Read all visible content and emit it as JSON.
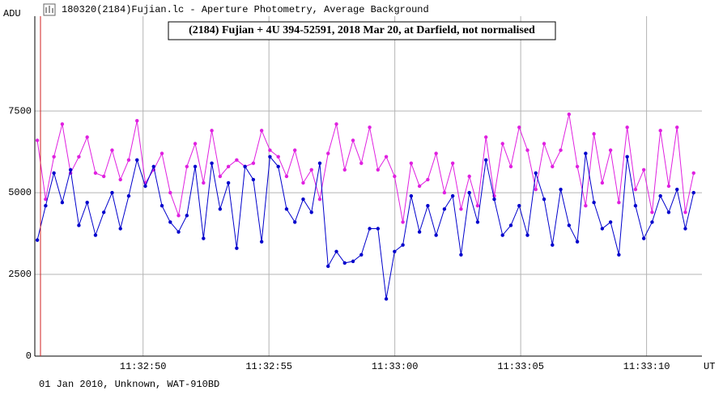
{
  "window_title": "180320(2184)Fujian.lc - Aperture Photometry, Average Background",
  "footer": "01 Jan 2010, Unknown, WAT-910BD",
  "chart_data": {
    "type": "line",
    "title": "(2184) Fujian + 4U 394-52591, 2018 Mar 20, at Darfield, not normalised",
    "ylabel": "ADU",
    "xlabel": "UT",
    "x": [
      45.8,
      46.13,
      46.46,
      46.79,
      47.12,
      47.45,
      47.78,
      48.11,
      48.44,
      48.77,
      49.1,
      49.43,
      49.76,
      50.09,
      50.42,
      50.75,
      51.08,
      51.41,
      51.74,
      52.07,
      52.4,
      52.73,
      53.06,
      53.39,
      53.72,
      54.05,
      54.38,
      54.71,
      55.04,
      55.37,
      55.7,
      56.03,
      56.36,
      56.69,
      57.02,
      57.35,
      57.68,
      58.01,
      58.34,
      58.67,
      59,
      59.33,
      59.66,
      59.99,
      60.32,
      60.65,
      60.98,
      61.31,
      61.64,
      61.97,
      62.3,
      62.63,
      62.96,
      63.29,
      63.62,
      63.95,
      64.28,
      64.61,
      64.94,
      65.27,
      65.6,
      65.93,
      66.26,
      66.59,
      66.92,
      67.25,
      67.58,
      67.91,
      68.24,
      68.57,
      68.9,
      69.23,
      69.56,
      69.89,
      70.22,
      70.55,
      70.88,
      71.21,
      71.54,
      71.87
    ],
    "series": [
      {
        "color": "#e020e0",
        "values": [
          6600,
          4800,
          6100,
          7100,
          5600,
          6100,
          6700,
          5600,
          5500,
          6300,
          5400,
          6000,
          7200,
          5300,
          5700,
          6200,
          5000,
          4300,
          5800,
          6500,
          5300,
          6900,
          5500,
          5800,
          6000,
          5800,
          5900,
          6900,
          6300,
          6100,
          5500,
          6300,
          5300,
          5700,
          4800,
          6200,
          7100,
          5700,
          6600,
          5900,
          7000,
          5700,
          6100,
          5500,
          4100,
          5900,
          5200,
          5400,
          6200,
          5000,
          5900,
          4500,
          5500,
          4600,
          6700,
          4900,
          6500,
          5800,
          7000,
          6300,
          5100,
          6500,
          5800,
          6300,
          7400,
          5800,
          4600,
          6800,
          5300,
          6300,
          4700,
          7000,
          5100,
          5700,
          4400,
          6900,
          5200,
          7000,
          4400,
          5600
        ]
      },
      {
        "color": "#0000cc",
        "values": [
          3550,
          4600,
          5600,
          4700,
          5700,
          4000,
          4700,
          3700,
          4400,
          5000,
          3900,
          4900,
          6000,
          5200,
          5800,
          4600,
          4100,
          3800,
          4300,
          5800,
          3600,
          5900,
          4500,
          5300,
          3300,
          5800,
          5400,
          3500,
          6100,
          5800,
          4500,
          4100,
          4800,
          4400,
          5900,
          2750,
          3200,
          2850,
          2900,
          3100,
          3900,
          3900,
          1750,
          3200,
          3400,
          4900,
          3800,
          4600,
          3700,
          4500,
          4900,
          3100,
          5000,
          4100,
          6000,
          4800,
          3700,
          4000,
          4600,
          3700,
          5600,
          4800,
          3400,
          5100,
          4000,
          3500,
          6200,
          4700,
          3900,
          4100,
          3100,
          6100,
          4600,
          3600,
          4100,
          4900,
          4400,
          5100,
          3900,
          5000
        ]
      }
    ],
    "xlim": [
      45.7,
      72.2
    ],
    "xticks": [
      {
        "value": 50,
        "label": "11:32:50"
      },
      {
        "value": 55,
        "label": "11:32:55"
      },
      {
        "value": 60,
        "label": "11:33:00"
      },
      {
        "value": 65,
        "label": "11:33:05"
      },
      {
        "value": 70,
        "label": "11:33:10"
      }
    ],
    "ylim": [
      0,
      10400
    ],
    "yticks": [
      0,
      2500,
      5000,
      7500
    ],
    "grid": true
  }
}
